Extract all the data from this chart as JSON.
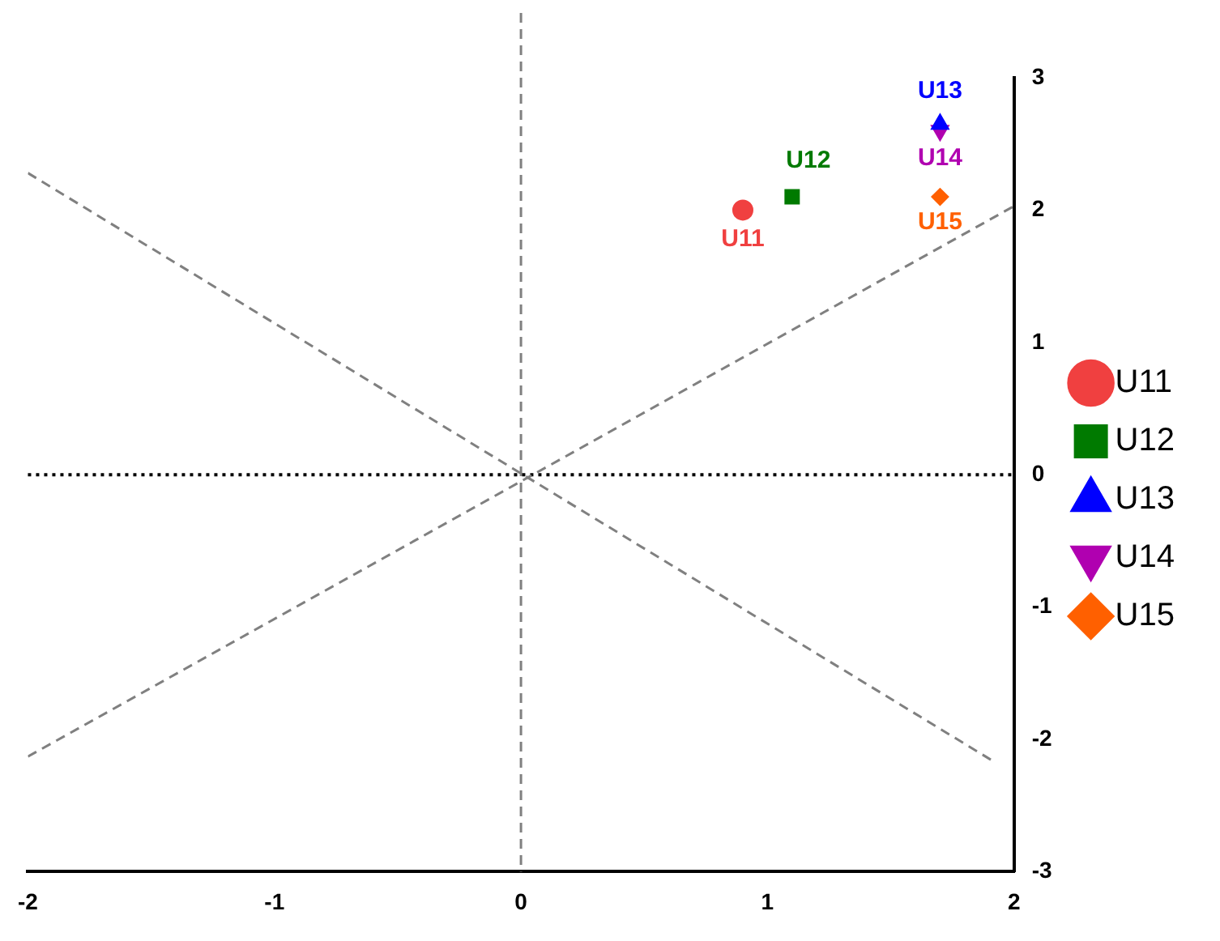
{
  "chart_data": {
    "type": "scatter",
    "xlim": [
      -2,
      2
    ],
    "xticks": [
      -2,
      -1,
      0,
      1,
      2
    ],
    "ylim": [
      -3,
      3
    ],
    "yticks": [
      -3,
      -2,
      -1,
      0,
      1,
      2,
      3
    ],
    "grid": false,
    "legend": "right",
    "series": [
      {
        "name": "U11",
        "color": "#f04040",
        "marker": "circle",
        "x": [
          0.9
        ],
        "values": [
          2.0
        ]
      },
      {
        "name": "U12",
        "color": "#007a00",
        "marker": "square",
        "x": [
          1.1
        ],
        "values": [
          2.1
        ]
      },
      {
        "name": "U13",
        "color": "#0000ff",
        "marker": "triangle",
        "x": [
          1.7
        ],
        "values": [
          2.65
        ]
      },
      {
        "name": "U14",
        "color": "#b000b0",
        "marker": "triangle-down",
        "x": [
          1.7
        ],
        "values": [
          2.6
        ]
      },
      {
        "name": "U15",
        "color": "#ff6000",
        "marker": "diamond",
        "x": [
          1.7
        ],
        "values": [
          2.1
        ]
      },
      {
        "type": "line",
        "color": "#808080",
        "marker": "none",
        "line_style": "dashed",
        "x": [
          -2,
          1.92
        ],
        "values": [
          2.28,
          -2.17
        ]
      },
      {
        "type": "line",
        "color": "#808080",
        "marker": "none",
        "line_style": "dashed",
        "x": [
          -2,
          2
        ],
        "values": [
          -2.13,
          2.03
        ]
      }
    ],
    "ref_lines": [
      {
        "axis": "x",
        "value": 0,
        "color": "#808080",
        "line_style": "dashed"
      },
      {
        "axis": "y",
        "value": 0,
        "color": "#000000",
        "line_style": "dotted"
      }
    ],
    "annotations": [
      {
        "text": "U11",
        "x": 0.9,
        "y": 2.0
      },
      {
        "text": "U12",
        "x": 1.1,
        "y": 2.1
      },
      {
        "text": "U13",
        "x": 1.7,
        "y": 2.65
      },
      {
        "text": "U14",
        "x": 1.7,
        "y": 2.6
      },
      {
        "text": "U15",
        "x": 1.7,
        "y": 2.1
      }
    ]
  }
}
